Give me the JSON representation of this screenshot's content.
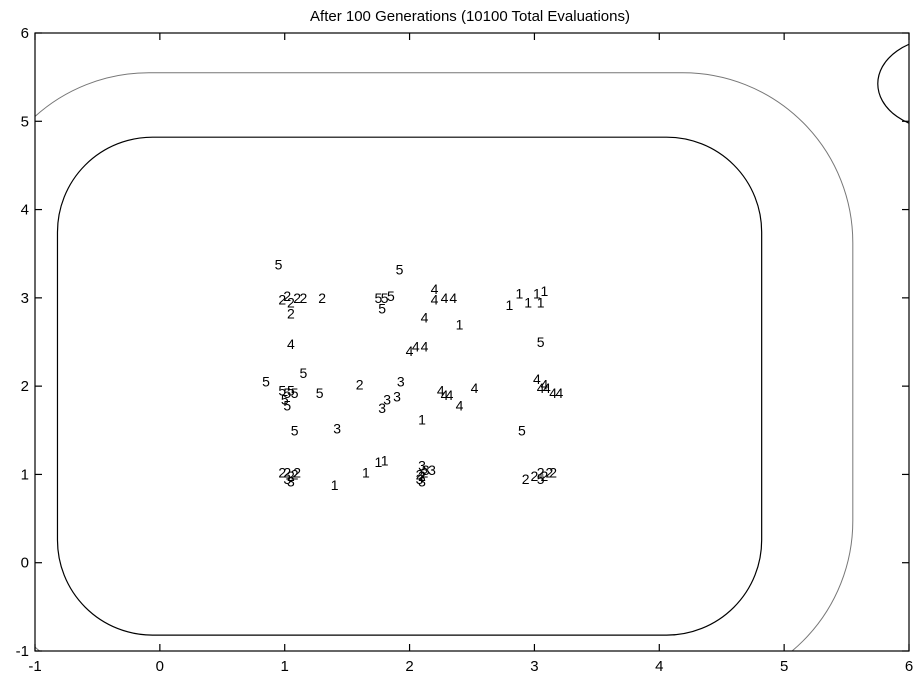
{
  "chart_data": {
    "type": "scatter",
    "title": "After 100 Generations (10100 Total Evaluations)",
    "xlabel": "",
    "ylabel": "",
    "xlim": [
      -1,
      6
    ],
    "ylim": [
      -1,
      6
    ],
    "x_ticks": [
      -1,
      0,
      1,
      2,
      3,
      4,
      5,
      6
    ],
    "y_ticks": [
      -1,
      0,
      1,
      2,
      3,
      4,
      5,
      6
    ],
    "x_tick_labels": [
      "-1",
      "0",
      "1",
      "2",
      "3",
      "4",
      "5",
      "6"
    ],
    "y_tick_labels": [
      "-1",
      "0",
      "1",
      "2",
      "3",
      "4",
      "5",
      "6"
    ],
    "grid": false,
    "marker_style": "digit labels",
    "contours": [
      {
        "name": "inner",
        "style": "solid",
        "x_range": [
          -0.82,
          4.82
        ],
        "y_range": [
          -0.82,
          4.82
        ]
      },
      {
        "name": "middle",
        "style": "faint",
        "x_range": [
          -1,
          5.55
        ],
        "y_range": [
          -1,
          5.55
        ]
      },
      {
        "name": "outer",
        "style": "solid",
        "x_range": [
          5.7,
          6
        ],
        "y_range": [
          5.7,
          6
        ]
      }
    ],
    "series": [
      {
        "label": "1",
        "points": [
          [
            1.4,
            0.88
          ],
          [
            1.65,
            1.02
          ],
          [
            1.75,
            1.14
          ],
          [
            1.8,
            1.16
          ],
          [
            2.1,
            1.62
          ],
          [
            2.4,
            2.7
          ],
          [
            2.8,
            2.92
          ],
          [
            2.88,
            3.05
          ],
          [
            2.95,
            2.95
          ],
          [
            3.02,
            3.05
          ],
          [
            3.05,
            2.95
          ],
          [
            3.08,
            3.08
          ]
        ]
      },
      {
        "label": "2",
        "points": [
          [
            0.98,
            2.98
          ],
          [
            1.02,
            3.02
          ],
          [
            1.05,
            2.95
          ],
          [
            1.1,
            3.0
          ],
          [
            1.15,
            3.0
          ],
          [
            1.3,
            3.0
          ],
          [
            1.05,
            2.82
          ],
          [
            1.6,
            2.02
          ],
          [
            0.98,
            1.02
          ],
          [
            1.02,
            1.02
          ],
          [
            1.05,
            0.98
          ],
          [
            1.08,
            1.0
          ],
          [
            1.1,
            1.02
          ],
          [
            2.08,
            1.0
          ],
          [
            2.1,
            0.98
          ],
          [
            2.12,
            1.02
          ],
          [
            2.93,
            0.95
          ],
          [
            3.0,
            0.98
          ],
          [
            3.05,
            1.02
          ],
          [
            3.08,
            0.98
          ],
          [
            3.12,
            1.02
          ],
          [
            3.15,
            1.02
          ]
        ]
      },
      {
        "label": "3",
        "points": [
          [
            1.02,
            0.95
          ],
          [
            1.05,
            0.92
          ],
          [
            1.42,
            1.52
          ],
          [
            1.78,
            1.75
          ],
          [
            1.82,
            1.85
          ],
          [
            1.9,
            1.88
          ],
          [
            1.93,
            2.05
          ],
          [
            2.08,
            0.95
          ],
          [
            2.1,
            1.1
          ],
          [
            2.13,
            1.05
          ],
          [
            2.18,
            1.05
          ],
          [
            2.1,
            0.92
          ]
        ]
      },
      {
        "label": "4",
        "points": [
          [
            1.05,
            2.48
          ],
          [
            2.0,
            2.4
          ],
          [
            2.05,
            2.45
          ],
          [
            2.12,
            2.45
          ],
          [
            2.12,
            2.78
          ],
          [
            2.2,
            3.1
          ],
          [
            2.2,
            2.98
          ],
          [
            2.28,
            3.0
          ],
          [
            2.35,
            3.0
          ],
          [
            2.25,
            1.95
          ],
          [
            2.28,
            1.9
          ],
          [
            2.32,
            1.9
          ],
          [
            2.4,
            1.78
          ],
          [
            2.52,
            1.98
          ],
          [
            3.02,
            2.08
          ],
          [
            3.05,
            1.98
          ],
          [
            3.08,
            2.02
          ],
          [
            3.1,
            1.98
          ],
          [
            3.15,
            1.92
          ],
          [
            3.2,
            1.92
          ]
        ]
      },
      {
        "label": "5",
        "points": [
          [
            0.95,
            3.38
          ],
          [
            1.92,
            3.32
          ],
          [
            1.8,
            3.0
          ],
          [
            1.85,
            3.02
          ],
          [
            1.78,
            2.88
          ],
          [
            1.75,
            3.0
          ],
          [
            1.15,
            2.15
          ],
          [
            0.85,
            2.05
          ],
          [
            0.98,
            1.95
          ],
          [
            1.02,
            1.92
          ],
          [
            1.05,
            1.95
          ],
          [
            1.08,
            1.92
          ],
          [
            1.0,
            1.85
          ],
          [
            1.02,
            1.78
          ],
          [
            1.28,
            1.92
          ],
          [
            1.08,
            1.5
          ],
          [
            3.05,
            2.5
          ],
          [
            2.9,
            1.5
          ],
          [
            3.05,
            0.95
          ]
        ]
      }
    ]
  }
}
